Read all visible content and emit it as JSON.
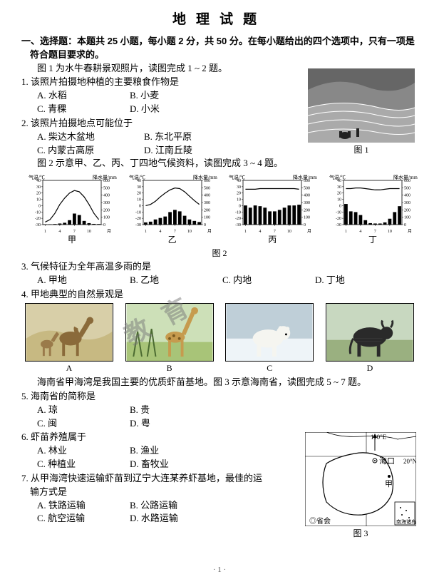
{
  "title": "地理试题",
  "instruction_a": "一、选择题：本题共 25 小题，每小题 2 分，共 50 分。在每小题给出的四个选项中，只有一项是",
  "instruction_b": "符合题目要求的。",
  "stem_1_2": "图 1 为水牛春耕景观照片，读图完成 1 ~ 2 题。",
  "q1": "1. 该照片拍摄地种植的主要粮食作物是",
  "q1A": "A. 水稻",
  "q1B": "B. 小麦",
  "q1C": "C. 青稞",
  "q1D": "D. 小米",
  "q2": "2. 该照片拍摄地点可能位于",
  "q2A": "A. 柴达木盆地",
  "q2B": "B. 东北平原",
  "q2C": "C. 内蒙古高原",
  "q2D": "D. 江南丘陵",
  "fig1_cap": "图 1",
  "stem_3_4": "图 2 示意甲、乙、丙、丁四地气候资料，读图完成 3 ~ 4 题。",
  "clim": {
    "axisL": "气温/℃",
    "axisR": "降水量/mm",
    "yticksL": [
      40,
      30,
      20,
      10,
      0,
      -10,
      -20,
      -30
    ],
    "yticksR": [
      600,
      500,
      400,
      300,
      200,
      100,
      0
    ],
    "xticks": [
      "1",
      "4",
      "7",
      "10",
      "月"
    ],
    "labels": [
      "甲",
      "乙",
      "丙",
      "丁"
    ],
    "temp": {
      "jia": [
        -26,
        -22,
        -12,
        2,
        12,
        20,
        24,
        22,
        14,
        2,
        -12,
        -22
      ],
      "yi": [
        0,
        2,
        7,
        14,
        20,
        25,
        28,
        27,
        22,
        15,
        8,
        2
      ],
      "bing": [
        26,
        26,
        26,
        27,
        27,
        27,
        27,
        27,
        27,
        27,
        27,
        26
      ],
      "ding": [
        27,
        27,
        28,
        28,
        27,
        26,
        25,
        25,
        26,
        27,
        27,
        27
      ]
    },
    "precip": {
      "jia": [
        5,
        5,
        8,
        15,
        25,
        60,
        150,
        130,
        50,
        20,
        10,
        8
      ],
      "yi": [
        30,
        40,
        70,
        90,
        110,
        170,
        200,
        180,
        120,
        70,
        50,
        35
      ],
      "bing": [
        260,
        230,
        260,
        250,
        230,
        180,
        180,
        200,
        230,
        260,
        260,
        270
      ],
      "ding": [
        280,
        180,
        170,
        130,
        60,
        20,
        15,
        15,
        30,
        80,
        170,
        250
      ]
    }
  },
  "fig2_cap": "图 2",
  "q3": "3. 气候特征为全年高温多雨的是",
  "q3A": "A. 甲地",
  "q3B": "B. 乙地",
  "q3C": "C. 内地",
  "q3D": "D. 丁地",
  "q4": "4. 甲地典型的自然景观是",
  "ani_labels": [
    "A",
    "B",
    "C",
    "D"
  ],
  "stem_5_7": "海南省甲海湾是我国主要的优质虾苗基地。图 3 示意海南省，读图完成 5 ~ 7 题。",
  "q5": "5. 海南省的简称是",
  "q5A": "A. 琼",
  "q5B": "B. 贵",
  "q5C": "C. 闽",
  "q5D": "D. 粤",
  "q6": "6. 虾苗养殖属于",
  "q6A": "A. 林业",
  "q6B": "B. 渔业",
  "q6C": "C. 种植业",
  "q6D": "D. 畜牧业",
  "q7a": "7. 从甲海湾快速运输虾苗到辽宁大连某养虾基地，最佳的运",
  "q7b": "输方式是",
  "q7A": "A. 铁路运输",
  "q7B": "B. 公路运输",
  "q7C": "C. 航空运输",
  "q7D": "D. 水路运输",
  "map": {
    "lon": "110°E",
    "lat": "20°N",
    "city": "海口",
    "mark": "甲",
    "legend": "◎省会",
    "inset": "南海诸岛"
  },
  "fig3_cap": "图 3",
  "watermark": "教育",
  "pagenum": "· 1 ·"
}
